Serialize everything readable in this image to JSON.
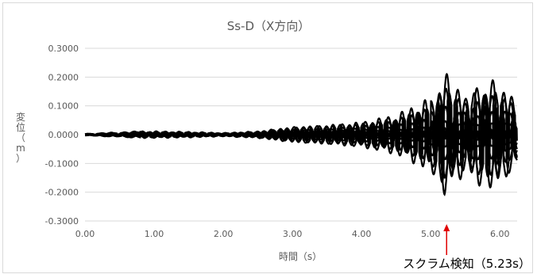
{
  "chart_data": {
    "type": "line",
    "title": "Ss-D（X方向）",
    "xlabel": "時間（s）",
    "ylabel": "変位（m）",
    "xlim": [
      0.0,
      6.25
    ],
    "ylim": [
      -0.3,
      0.3
    ],
    "x_ticks": [
      "0.00",
      "1.00",
      "2.00",
      "3.00",
      "4.00",
      "5.00",
      "6.00"
    ],
    "y_ticks": [
      "0.3000",
      "0.2000",
      "0.1000",
      "0.0000",
      "-0.1000",
      "-0.2000",
      "-0.3000"
    ],
    "grid": "horizontal",
    "legend": "none",
    "line_color": "#000000",
    "series_envelope_description_free": true,
    "series": [
      {
        "x": [
          0,
          0.8,
          1.0,
          1.5,
          2.0,
          2.5,
          3.0,
          3.5,
          4.0,
          4.5,
          5.0,
          5.2,
          5.5,
          5.8,
          6.0,
          6.25
        ],
        "amplitude": [
          0.003,
          0.012,
          0.012,
          0.01,
          0.006,
          0.012,
          0.028,
          0.035,
          0.045,
          0.07,
          0.13,
          0.22,
          0.14,
          0.2,
          0.18,
          0.12
        ]
      }
    ],
    "annotation": {
      "text": "スクラム検知（5.23s）",
      "x": 5.23
    }
  }
}
